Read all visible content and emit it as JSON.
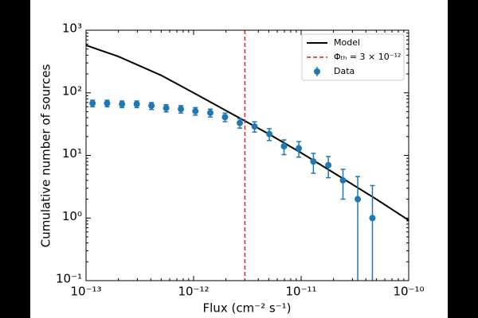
{
  "chart_data": {
    "type": "scatter",
    "xlabel": "Flux (cm⁻² s⁻¹)",
    "ylabel": "Cumulative number of sources",
    "xscale": "log",
    "yscale": "log",
    "xlim": [
      1e-13,
      1e-10
    ],
    "ylim": [
      0.1,
      1000
    ],
    "xticks": [
      {
        "value": 1e-13,
        "label": "10⁻¹³"
      },
      {
        "value": 1e-12,
        "label": "10⁻¹²"
      },
      {
        "value": 1e-11,
        "label": "10⁻¹¹"
      },
      {
        "value": 1e-10,
        "label": "10⁻¹⁰"
      }
    ],
    "yticks": [
      {
        "value": 0.1,
        "label": "10⁻¹"
      },
      {
        "value": 1,
        "label": "10⁰"
      },
      {
        "value": 10,
        "label": "10¹"
      },
      {
        "value": 100,
        "label": "10²"
      },
      {
        "value": 1000,
        "label": "10³"
      }
    ],
    "legend": "upper right",
    "series": [
      {
        "name": "Model",
        "color": "#000000",
        "kind": "line",
        "x": [
          1e-13,
          2e-13,
          5e-13,
          1e-12,
          2e-12,
          5e-12,
          1e-11,
          2e-11,
          5e-11,
          1e-10
        ],
        "values": [
          575,
          380,
          190,
          100,
          52,
          22,
          11,
          5.3,
          2,
          0.92
        ]
      },
      {
        "name": "Φₜₕ = 3 × 10⁻¹²",
        "color": "#d62728",
        "kind": "vline",
        "x": 3e-12
      },
      {
        "name": "Data",
        "color": "#1f77b4",
        "kind": "errorbar",
        "x": [
          1.15e-13,
          1.57e-13,
          2.16e-13,
          2.96e-13,
          4.06e-13,
          5.56e-13,
          7.62e-13,
          1.04e-12,
          1.43e-12,
          1.96e-12,
          2.69e-12,
          3.69e-12,
          5.06e-12,
          6.93e-12,
          9.51e-12,
          1.3e-11,
          1.79e-11,
          2.45e-11,
          3.36e-11,
          4.6e-11
        ],
        "values": [
          68,
          68,
          66,
          66,
          62,
          57,
          55,
          51,
          48,
          41,
          33,
          29,
          22,
          14,
          13,
          8,
          7,
          4,
          2,
          1
        ],
        "errors": [
          8.2,
          8.2,
          8.1,
          8.1,
          7.9,
          7.5,
          7.4,
          7.1,
          6.9,
          6.4,
          5.7,
          5.4,
          4.7,
          3.7,
          3.6,
          2.8,
          2.6,
          2,
          2.6,
          2.3
        ]
      }
    ]
  }
}
